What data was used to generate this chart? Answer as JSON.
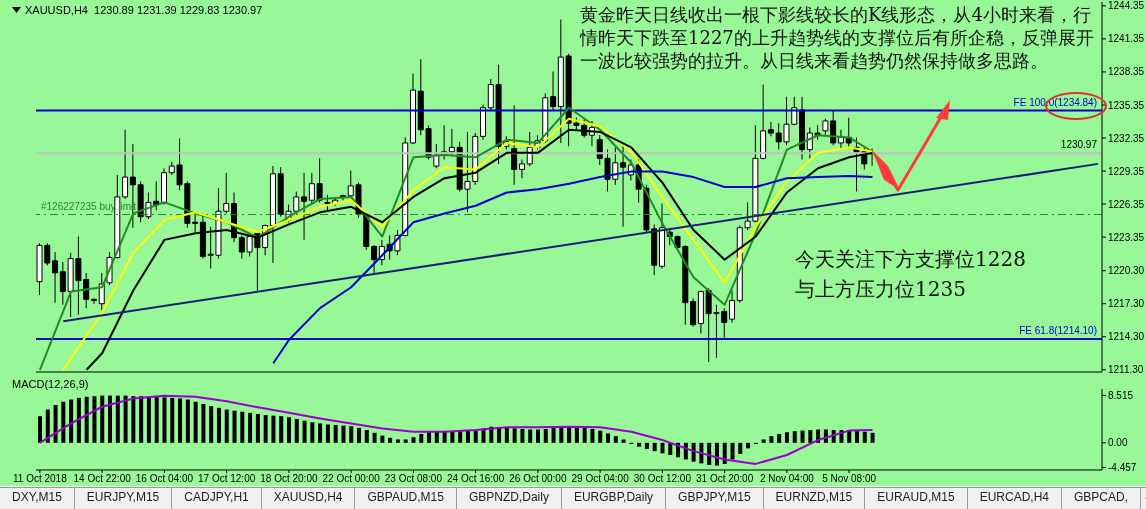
{
  "chart_data": [
    {
      "type": "candlestick",
      "title": "XAUUSD,H4  1230.89 1231.39 1229.83 1230.97",
      "categories": [
        null,
        null,
        null,
        null,
        null,
        null,
        null,
        null,
        null,
        null,
        null,
        null,
        null,
        null,
        null,
        null,
        null,
        null,
        null,
        null,
        null,
        null,
        null,
        null,
        null,
        null,
        null,
        null,
        null,
        null,
        null,
        null,
        null,
        null,
        null,
        null,
        null,
        null,
        null,
        null,
        null,
        null,
        null,
        null,
        null,
        null,
        null,
        null,
        null,
        null,
        null,
        null,
        null,
        null,
        null,
        null,
        null,
        null,
        null,
        null,
        null,
        null,
        null,
        null,
        null,
        null,
        null,
        null,
        null,
        null,
        null,
        null,
        null,
        null,
        null,
        null,
        null,
        null,
        null,
        null,
        null,
        null,
        null,
        null,
        null,
        null,
        null,
        null,
        null,
        null,
        null,
        null,
        null,
        null,
        null,
        null,
        null,
        null,
        null,
        null,
        null,
        null,
        null,
        null,
        null,
        null,
        null,
        null,
        null,
        null,
        null,
        null,
        null,
        null,
        null,
        null,
        null,
        null,
        null,
        null,
        null,
        null,
        null,
        null,
        null,
        null,
        null,
        null,
        null,
        null,
        null,
        null,
        null,
        null,
        null,
        null,
        null
      ],
      "ohlc": [
        [
          1219.3,
          1222.8,
          1218.1,
          1222.6
        ],
        [
          1222.6,
          1222.8,
          1220.8,
          1221.0
        ],
        [
          1221.2,
          1222.0,
          1217.4,
          1220.1
        ],
        [
          1220.2,
          1221.1,
          1217.2,
          1218.4
        ],
        [
          1218.4,
          1221.9,
          1216.1,
          1221.4
        ],
        [
          1221.4,
          1223.4,
          1216.3,
          1219.4
        ],
        [
          1219.5,
          1220.1,
          1216.9,
          1217.7
        ],
        [
          1217.7,
          1217.8,
          1217.3,
          1217.6
        ],
        [
          1217.3,
          1220.1,
          1216.7,
          1219.1
        ],
        [
          1219.2,
          1222.0,
          1219.0,
          1221.5
        ],
        [
          1221.5,
          1229.0,
          1221.4,
          1227.0
        ],
        [
          1227.0,
          1233.1,
          1226.8,
          1228.8
        ],
        [
          1228.8,
          1231.8,
          1224.2,
          1228.1
        ],
        [
          1228.1,
          1228.4,
          1224.7,
          1225.2
        ],
        [
          1225.2,
          1227.4,
          1225.0,
          1226.5
        ],
        [
          1226.6,
          1228.4,
          1225.8,
          1226.3
        ],
        [
          1226.5,
          1229.6,
          1226.3,
          1229.2
        ],
        [
          1229.2,
          1230.2,
          1229.0,
          1229.8
        ],
        [
          1229.9,
          1232.3,
          1227.6,
          1228.1
        ],
        [
          1228.2,
          1228.4,
          1224.2,
          1224.6
        ],
        [
          1224.7,
          1225.4,
          1223.7,
          1224.6
        ],
        [
          1224.7,
          1225.5,
          1221.4,
          1221.6
        ],
        [
          1221.7,
          1224.3,
          1220.5,
          1221.8
        ],
        [
          1221.7,
          1227.8,
          1221.4,
          1225.7
        ],
        [
          1225.7,
          1229.2,
          1225.5,
          1226.4
        ],
        [
          1226.4,
          1227.4,
          1222.9,
          1223.3
        ],
        [
          1223.3,
          1223.5,
          1221.4,
          1222.0
        ],
        [
          1222.0,
          1223.5,
          1221.6,
          1223.4
        ],
        [
          1223.7,
          1223.8,
          1218.5,
          1222.4
        ],
        [
          1222.4,
          1224.5,
          1221.7,
          1224.4
        ],
        [
          1224.4,
          1229.8,
          1221.0,
          1229.1
        ],
        [
          1229.1,
          1229.7,
          1225.2,
          1225.4
        ],
        [
          1224.9,
          1226.3,
          1224.7,
          1225.7
        ],
        [
          1225.7,
          1227.5,
          1225.5,
          1227.0
        ],
        [
          1227.0,
          1229.2,
          1223.1,
          1226.6
        ],
        [
          1226.7,
          1229.2,
          1226.3,
          1228.2
        ],
        [
          1228.2,
          1230.5,
          1226.5,
          1226.7
        ],
        [
          1226.5,
          1227.2,
          1225.8,
          1226.4
        ],
        [
          1226.4,
          1227.0,
          1226.2,
          1226.7
        ],
        [
          1227.1,
          1227.2,
          1226.7,
          1227.0
        ],
        [
          1227.1,
          1229.4,
          1226.9,
          1228.0
        ],
        [
          1228.1,
          1228.3,
          1225.1,
          1225.4
        ],
        [
          1225.4,
          1225.5,
          1222.2,
          1222.5
        ],
        [
          1222.5,
          1222.6,
          1220.1,
          1221.3
        ],
        [
          1221.3,
          1223.1,
          1220.8,
          1222.5
        ],
        [
          1222.7,
          1223.5,
          1221.3,
          1222.1
        ],
        [
          1222.1,
          1224.0,
          1221.7,
          1223.5
        ],
        [
          1223.5,
          1232.4,
          1223.4,
          1231.9
        ],
        [
          1231.9,
          1238.2,
          1231.8,
          1236.7
        ],
        [
          1236.6,
          1239.5,
          1232.6,
          1233.1
        ],
        [
          1233.2,
          1233.5,
          1230.4,
          1230.6
        ],
        [
          1229.8,
          1231.8,
          1229.6,
          1230.8
        ],
        [
          1230.8,
          1233.5,
          1230.4,
          1231.1
        ],
        [
          1231.1,
          1233.2,
          1230.8,
          1231.5
        ],
        [
          1231.5,
          1232.0,
          1227.5,
          1227.7
        ],
        [
          1227.7,
          1232.9,
          1225.6,
          1228.4
        ],
        [
          1228.4,
          1232.8,
          1228.1,
          1232.5
        ],
        [
          1232.5,
          1235.4,
          1232.2,
          1235.1
        ],
        [
          1235.1,
          1237.7,
          1234.9,
          1237.2
        ],
        [
          1237.2,
          1239.0,
          1230.0,
          1231.6
        ],
        [
          1231.6,
          1232.5,
          1231.3,
          1232.0
        ],
        [
          1231.4,
          1235.3,
          1228.1,
          1229.5
        ],
        [
          1229.5,
          1230.4,
          1228.7,
          1230.0
        ],
        [
          1230.0,
          1232.9,
          1229.8,
          1231.5
        ],
        [
          1231.5,
          1232.6,
          1231.3,
          1232.1
        ],
        [
          1232.1,
          1236.4,
          1231.9,
          1236.0
        ],
        [
          1236.1,
          1238.4,
          1234.9,
          1235.2
        ],
        [
          1235.2,
          1243.1,
          1231.9,
          1239.7
        ],
        [
          1239.8,
          1240.0,
          1231.6,
          1233.7
        ],
        [
          1233.7,
          1234.2,
          1233.1,
          1233.5
        ],
        [
          1233.5,
          1234.0,
          1232.4,
          1232.6
        ],
        [
          1232.6,
          1233.9,
          1231.6,
          1233.3
        ],
        [
          1232.2,
          1232.6,
          1229.9,
          1230.5
        ],
        [
          1230.5,
          1231.3,
          1227.5,
          1228.6
        ],
        [
          1228.6,
          1231.5,
          1228.1,
          1230.1
        ],
        [
          1230.1,
          1231.9,
          1224.3,
          1229.7
        ],
        [
          1229.0,
          1230.4,
          1228.5,
          1229.9
        ],
        [
          1229.9,
          1230.4,
          1226.5,
          1227.7
        ],
        [
          1227.8,
          1228.1,
          1223.8,
          1224.0
        ],
        [
          1224.1,
          1224.5,
          1219.9,
          1220.8
        ],
        [
          1220.7,
          1226.4,
          1220.5,
          1224.2
        ],
        [
          1223.8,
          1224.2,
          1222.6,
          1223.4
        ],
        [
          1223.4,
          1223.5,
          1222.2,
          1222.4
        ],
        [
          1222.5,
          1222.6,
          1215.4,
          1217.4
        ],
        [
          1217.5,
          1217.8,
          1215.2,
          1215.4
        ],
        [
          1215.5,
          1218.5,
          1214.6,
          1218.4
        ],
        [
          1218.5,
          1218.7,
          1212.0,
          1216.4
        ],
        [
          1216.4,
          1217.2,
          1212.4,
          1216.5
        ],
        [
          1216.6,
          1216.9,
          1214.2,
          1215.6
        ],
        [
          1215.9,
          1218.5,
          1215.6,
          1217.6
        ],
        [
          1217.6,
          1224.4,
          1217.4,
          1224.2
        ],
        [
          1224.2,
          1226.5,
          1224.0,
          1224.8
        ],
        [
          1224.8,
          1233.5,
          1224.7,
          1230.5
        ],
        [
          1230.5,
          1237.2,
          1230.4,
          1233.0
        ],
        [
          1233.1,
          1233.8,
          1232.5,
          1232.8
        ],
        [
          1232.8,
          1233.7,
          1231.3,
          1232.0
        ],
        [
          1232.0,
          1236.1,
          1231.7,
          1233.6
        ],
        [
          1233.6,
          1236.1,
          1233.5,
          1235.1
        ],
        [
          1234.9,
          1236.1,
          1230.4,
          1231.3
        ],
        [
          1231.3,
          1233.3,
          1230.5,
          1232.8
        ],
        [
          1232.8,
          1233.5,
          1232.2,
          1232.6
        ],
        [
          1233.0,
          1234.1,
          1232.6,
          1233.9
        ],
        [
          1233.9,
          1234.9,
          1231.7,
          1231.9
        ],
        [
          1231.9,
          1233.1,
          1231.3,
          1232.4
        ],
        [
          1232.4,
          1234.2,
          1231.5,
          1231.9
        ],
        [
          1231.5,
          1232.4,
          1227.5,
          1231.1
        ],
        [
          1231.1,
          1231.5,
          1229.5,
          1230.0
        ],
        [
          1230.89,
          1231.39,
          1229.83,
          1230.97
        ],
        null,
        null,
        null,
        null,
        null,
        null,
        null,
        null,
        null,
        null,
        null,
        null,
        null,
        null,
        null,
        null,
        null,
        null,
        null,
        null,
        null,
        null,
        null,
        null,
        null,
        null,
        null,
        null,
        null
      ],
      "series": [
        {
          "type": "line",
          "color": "#228b22",
          "values": [
            1211.3,
            null,
            null,
            null,
            1218.4,
            null,
            null,
            null,
            1218.8,
            null,
            null,
            null,
            1225.5,
            null,
            null,
            null,
            1226.5,
            null,
            null,
            null,
            1225.5,
            null,
            null,
            null,
            1224.7,
            null,
            null,
            null,
            1223.3,
            null,
            null,
            null,
            1225.2,
            null,
            null,
            null,
            1226.8,
            null,
            null,
            null,
            1227.0,
            null,
            null,
            null,
            1223.4,
            null,
            null,
            null,
            1230.6,
            null,
            null,
            null,
            1230.8,
            null,
            null,
            null,
            1230.6,
            null,
            null,
            null,
            1232.2,
            null,
            null,
            null,
            1231.9,
            null,
            null,
            null,
            1235.1,
            null,
            null,
            null,
            1233.1,
            null,
            null,
            null,
            1230.1,
            null,
            null,
            null,
            1224.6,
            null,
            null,
            null,
            1219.7,
            null,
            null,
            null,
            1217.2,
            null,
            null,
            null,
            1223.7,
            null,
            null,
            null,
            1231.3,
            null,
            null,
            null,
            1232.6,
            null,
            null,
            null,
            1232.4,
            null,
            null,
            1231.1,
            null,
            null,
            null,
            null,
            null,
            null,
            null,
            null,
            null,
            null,
            null,
            null,
            null,
            null,
            null,
            null,
            null,
            null,
            null,
            null,
            null,
            null,
            null,
            null,
            null,
            null,
            null,
            null,
            null
          ]
        },
        {
          "type": "line",
          "color": "#ffff00",
          "values": [
            null,
            null,
            null,
            1211.3,
            null,
            null,
            null,
            null,
            1216.5,
            null,
            null,
            null,
            1221.9,
            null,
            null,
            null,
            1224.9,
            null,
            null,
            null,
            1225.6,
            null,
            null,
            null,
            1224.7,
            null,
            null,
            null,
            1223.8,
            null,
            null,
            null,
            1224.9,
            null,
            null,
            null,
            1226.1,
            null,
            null,
            null,
            1226.7,
            null,
            null,
            null,
            1224.3,
            null,
            null,
            null,
            1227.6,
            null,
            null,
            null,
            1229.7,
            null,
            null,
            null,
            1229.5,
            null,
            null,
            null,
            1231.9,
            null,
            null,
            null,
            1231.5,
            null,
            null,
            null,
            1234.1,
            null,
            null,
            null,
            1233.4,
            null,
            null,
            null,
            1231.1,
            null,
            null,
            null,
            1227.0,
            null,
            null,
            null,
            1223.1,
            null,
            null,
            null,
            1219.2,
            null,
            null,
            null,
            1224.3,
            null,
            null,
            null,
            1228.4,
            null,
            null,
            null,
            1231.0,
            null,
            null,
            null,
            1231.5,
            null,
            null,
            1231.1,
            null,
            null,
            null,
            null,
            null,
            null,
            null,
            null,
            null,
            null,
            null,
            null,
            null,
            null,
            null,
            null,
            null,
            null,
            null,
            null,
            null,
            null,
            null,
            null,
            null,
            null,
            null,
            null,
            null
          ]
        },
        {
          "type": "line",
          "color": "#000000",
          "values": [
            null,
            null,
            null,
            null,
            null,
            null,
            1211.3,
            null,
            1212.8,
            null,
            null,
            null,
            1218.5,
            null,
            null,
            null,
            1223.1,
            null,
            null,
            null,
            1223.7,
            null,
            null,
            null,
            1224.0,
            null,
            null,
            null,
            1223.3,
            null,
            null,
            null,
            1224.5,
            null,
            null,
            null,
            1225.6,
            null,
            null,
            null,
            1226.1,
            null,
            null,
            null,
            1224.7,
            null,
            null,
            null,
            1227.0,
            null,
            null,
            null,
            1228.7,
            null,
            null,
            null,
            1229.2,
            null,
            null,
            null,
            1231.0,
            null,
            null,
            null,
            1231.0,
            null,
            null,
            null,
            1233.1,
            null,
            null,
            null,
            1232.9,
            null,
            null,
            null,
            1231.5,
            null,
            null,
            null,
            1228.3,
            null,
            null,
            null,
            1224.0,
            null,
            null,
            null,
            1221.3,
            null,
            null,
            null,
            1223.4,
            null,
            null,
            null,
            1227.4,
            null,
            null,
            null,
            1229.6,
            null,
            null,
            null,
            1230.6,
            null,
            null,
            1231.0,
            null,
            null,
            null,
            null,
            null,
            null,
            null,
            null,
            null,
            null,
            null,
            null,
            null,
            null,
            null,
            null,
            null,
            null,
            null,
            null,
            null,
            null,
            null,
            null,
            null,
            null,
            null,
            null,
            null
          ]
        },
        {
          "type": "line",
          "color": "#0000cc",
          "values": [
            null,
            null,
            null,
            null,
            null,
            null,
            null,
            null,
            null,
            null,
            null,
            null,
            null,
            null,
            null,
            null,
            null,
            null,
            null,
            null,
            null,
            null,
            null,
            null,
            null,
            null,
            null,
            null,
            null,
            null,
            1211.9,
            null,
            1214.0,
            null,
            null,
            null,
            1216.9,
            null,
            null,
            null,
            1218.8,
            null,
            null,
            null,
            1221.7,
            null,
            null,
            null,
            1224.7,
            null,
            null,
            null,
            1225.5,
            null,
            null,
            null,
            1226.2,
            null,
            null,
            null,
            1227.4,
            null,
            null,
            null,
            1227.7,
            null,
            null,
            null,
            1228.2,
            null,
            null,
            null,
            1228.8,
            null,
            null,
            null,
            1229.3,
            null,
            null,
            null,
            1229.3,
            null,
            null,
            null,
            1228.8,
            null,
            null,
            null,
            1227.9,
            null,
            null,
            null,
            1227.9,
            null,
            null,
            null,
            1228.7,
            null,
            null,
            null,
            1228.8,
            null,
            null,
            null,
            1228.9,
            null,
            null,
            1228.8,
            null,
            null,
            null,
            null,
            null,
            null,
            null,
            null,
            null,
            null,
            null,
            null,
            null,
            null,
            null,
            null,
            null,
            null,
            null,
            null,
            null,
            null,
            null,
            null,
            null,
            null,
            null,
            null,
            null
          ]
        },
        {
          "type": "line",
          "color": "#1e1e78",
          "values": [
            null,
            null,
            null,
            1215.7,
            null,
            null,
            null,
            null,
            null,
            null,
            null,
            null,
            null,
            null,
            null,
            null,
            null,
            null,
            null,
            null,
            null,
            null,
            null,
            null,
            null,
            null,
            null,
            null,
            null,
            null,
            null,
            null,
            null,
            null,
            null,
            null,
            null,
            null,
            null,
            null,
            null,
            null,
            null,
            null,
            null,
            null,
            null,
            null,
            null,
            null,
            null,
            null,
            null,
            null,
            null,
            null,
            null,
            null,
            null,
            null,
            null,
            null,
            null,
            null,
            null,
            null,
            null,
            null,
            null,
            null,
            null,
            null,
            null,
            null,
            null,
            null,
            null,
            null,
            null,
            null,
            null,
            null,
            null,
            null,
            null,
            null,
            null,
            null,
            null,
            null,
            null,
            null,
            null,
            null,
            null,
            null,
            null,
            null,
            null,
            null,
            null,
            null,
            null,
            null,
            null,
            null,
            null,
            null,
            null,
            null,
            null,
            null,
            null,
            null,
            null,
            null,
            null,
            null,
            null,
            null,
            null,
            null,
            null,
            null,
            null,
            null,
            null,
            null,
            null,
            null,
            null,
            null,
            null,
            null,
            null,
            null,
            1230.0
          ]
        }
      ],
      "ylim": [
        1211.1,
        1244.7
      ],
      "yticks": [
        1244.35,
        1241.35,
        1238.35,
        1235.35,
        1232.35,
        1229.35,
        1226.35,
        1223.35,
        {
          "value": 1220.3,
          "label": "1220.30"
        },
        {
          "value": 1217.3,
          "label": "1217.30"
        },
        {
          "value": 1214.3,
          "label": "1214.30"
        },
        {
          "value": 1211.3,
          "label": "1211.30"
        }
      ],
      "ref_lines": [
        {
          "axis": "y",
          "value": 1234.84,
          "label": "FE 100.0(1234.84)",
          "color": "#0000cc"
        },
        {
          "axis": "y",
          "value": 1214.1,
          "label": "FE 61.8(1214.10)",
          "color": "#0000cc"
        },
        {
          "axis": "y",
          "value": 1225.4,
          "label": "#126227235 buy limit",
          "color": "#228b22",
          "line_style": "dashed"
        },
        {
          "axis": "y",
          "value": 1230.97,
          "label": "1230.97",
          "color": "#c0c0c0"
        }
      ],
      "annotations": [
        "黄金昨天日线收出一根下影线较长的K线形态，从4小时来看，行情昨天下跌至1227的上升趋势线的支撑位后有所企稳，反弹展开一波比较强势的拉升。从日线来看趋势仍然保持做多思路。",
        "今天关注下方支撑位1228与上方压力位1235"
      ],
      "tick_labels": "y",
      "grid": false,
      "legend": false
    },
    {
      "type": "bar",
      "title": "MACD(12,26,9)",
      "categories": [
        "11 Oct 2018",
        null,
        null,
        null,
        null,
        null,
        null,
        null,
        "14 Oct 22:00",
        null,
        null,
        null,
        null,
        null,
        null,
        null,
        "16 Oct 04:00",
        null,
        null,
        null,
        null,
        null,
        null,
        null,
        "17 Oct 12:00",
        null,
        null,
        null,
        null,
        null,
        null,
        null,
        "18 Oct 20:00",
        null,
        null,
        null,
        null,
        null,
        null,
        null,
        "22 Oct 00:00",
        null,
        null,
        null,
        null,
        null,
        null,
        null,
        "23 Oct 08:00",
        null,
        null,
        null,
        null,
        null,
        null,
        null,
        "24 Oct 16:00",
        null,
        null,
        null,
        null,
        null,
        null,
        null,
        "26 Oct 00:00",
        null,
        null,
        null,
        null,
        null,
        null,
        null,
        "29 Oct 04:00",
        null,
        null,
        null,
        null,
        null,
        null,
        null,
        "30 Oct 12:00",
        null,
        null,
        null,
        null,
        null,
        null,
        null,
        "31 Oct 20:00",
        null,
        null,
        null,
        null,
        null,
        null,
        null,
        "2 Nov 04:00",
        null,
        null,
        null,
        null,
        null,
        null,
        null,
        "5 Nov 08:00",
        null,
        null,
        null,
        null,
        null,
        null,
        null,
        null,
        null,
        null,
        null,
        null,
        null,
        null,
        null,
        null,
        null,
        null,
        null,
        null,
        null,
        null,
        null,
        null,
        null,
        null,
        null,
        null,
        null,
        null,
        null,
        null
      ],
      "series": [
        {
          "type": "bar",
          "color": "#000000",
          "values": [
            4.8,
            6.0,
            6.8,
            7.4,
            7.8,
            8.1,
            8.3,
            8.4,
            8.5,
            8.5,
            8.5,
            8.5,
            8.4,
            8.4,
            8.3,
            8.3,
            8.2,
            8.1,
            8.0,
            7.8,
            7.4,
            7.0,
            6.6,
            6.3,
            6.0,
            5.8,
            5.6,
            5.4,
            5.2,
            5.0,
            4.9,
            4.8,
            4.6,
            4.3,
            4.0,
            3.7,
            3.5,
            3.3,
            3.2,
            3.1,
            3.0,
            2.7,
            2.3,
            1.8,
            1.3,
            0.9,
            0.6,
            0.6,
            1.0,
            1.6,
            1.9,
            2.0,
            2.1,
            2.1,
            2.2,
            2.2,
            2.3,
            2.6,
            2.9,
            2.8,
            2.7,
            2.6,
            2.5,
            2.4,
            2.4,
            2.5,
            2.7,
            3.0,
            2.9,
            2.8,
            2.7,
            2.5,
            2.2,
            1.7,
            1.2,
            0.6,
            -0.2,
            -0.7,
            -1.1,
            -1.5,
            -1.9,
            -2.2,
            -2.6,
            -3.0,
            -3.4,
            -3.7,
            -4.0,
            -4.1,
            -3.8,
            -3.0,
            -2.0,
            -1.0,
            -0.2,
            0.6,
            1.2,
            1.6,
            1.9,
            2.1,
            2.2,
            2.3,
            2.4,
            2.4,
            2.3,
            2.3,
            2.2,
            2.1,
            2.0,
            1.8,
            null,
            null,
            null,
            null,
            null,
            null,
            null,
            null,
            null,
            null,
            null,
            null,
            null,
            null,
            null,
            null,
            null,
            null,
            null,
            null,
            null,
            null,
            null,
            null,
            null,
            null,
            null,
            null,
            null
          ]
        },
        {
          "type": "line",
          "color": "#9900cc",
          "values": [
            0.0,
            null,
            null,
            null,
            3.5,
            null,
            null,
            null,
            6.5,
            null,
            null,
            null,
            8.0,
            null,
            null,
            null,
            8.5,
            null,
            null,
            null,
            8.3,
            null,
            null,
            null,
            7.5,
            null,
            null,
            null,
            6.4,
            null,
            null,
            null,
            5.4,
            null,
            null,
            null,
            4.4,
            null,
            null,
            null,
            3.5,
            null,
            null,
            null,
            2.6,
            null,
            null,
            null,
            2.0,
            null,
            null,
            null,
            2.0,
            null,
            null,
            null,
            2.3,
            null,
            null,
            null,
            2.8,
            null,
            null,
            null,
            2.8,
            null,
            null,
            null,
            2.9,
            null,
            null,
            null,
            2.8,
            null,
            null,
            null,
            2.0,
            null,
            null,
            null,
            0.5,
            null,
            null,
            null,
            -1.5,
            null,
            null,
            null,
            -3.0,
            null,
            null,
            null,
            -3.8,
            null,
            null,
            null,
            -2.2,
            null,
            null,
            null,
            0.5,
            null,
            null,
            null,
            2.2,
            null,
            null,
            2.3,
            null,
            null,
            null,
            null,
            null,
            null,
            null,
            null,
            null,
            null,
            null,
            null,
            null,
            null,
            null,
            null,
            null,
            null,
            null,
            null,
            null,
            null,
            null,
            null,
            null,
            null,
            null,
            null,
            null
          ]
        }
      ],
      "ylim": [
        -4.9,
        9.7
      ],
      "yticks": [
        8.515,
        {
          "value": 0,
          "label": "0.00"
        },
        -4.457
      ],
      "grid": false,
      "legend": false
    },
    {
      "type": "other",
      "annotations": [
        "DXY,M15",
        "EURJPY,M15",
        "CADJPY,H1",
        "XAUUSD,H4",
        "GBPAUD,M15",
        "GBPNZD,Daily",
        "EURGBP,Daily",
        "GBPJPY,M15",
        "EURNZD,M15",
        "EURAUD,M15",
        "EURCAD,H4",
        "GBPCAD,"
      ]
    }
  ]
}
